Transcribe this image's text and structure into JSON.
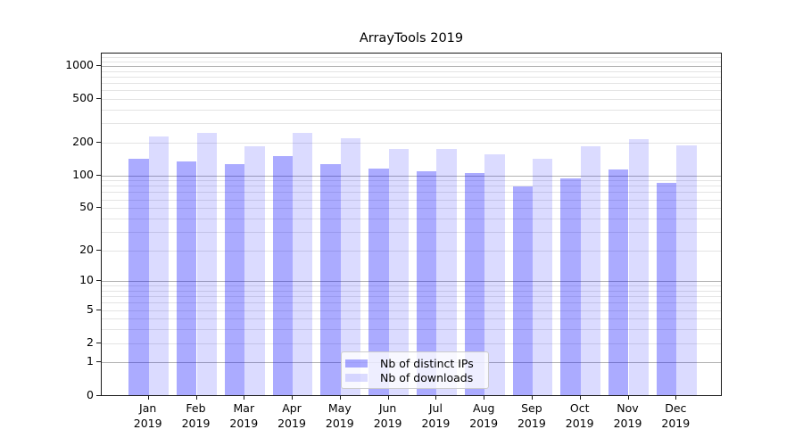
{
  "chart_data": {
    "type": "bar",
    "title": "ArrayTools 2019",
    "scale": "log1p",
    "grid": "both",
    "legend_position": "lower center",
    "ylim": [
      0,
      1300
    ],
    "y_ticks": [
      0,
      1,
      2,
      5,
      10,
      20,
      50,
      100,
      200,
      500,
      1000
    ],
    "categories": [
      {
        "month": "Jan",
        "year": "2019"
      },
      {
        "month": "Feb",
        "year": "2019"
      },
      {
        "month": "Mar",
        "year": "2019"
      },
      {
        "month": "Apr",
        "year": "2019"
      },
      {
        "month": "May",
        "year": "2019"
      },
      {
        "month": "Jun",
        "year": "2019"
      },
      {
        "month": "Jul",
        "year": "2019"
      },
      {
        "month": "Aug",
        "year": "2019"
      },
      {
        "month": "Sep",
        "year": "2019"
      },
      {
        "month": "Oct",
        "year": "2019"
      },
      {
        "month": "Nov",
        "year": "2019"
      },
      {
        "month": "Dec",
        "year": "2019"
      }
    ],
    "series": [
      {
        "name": "Nb of distinct IPs",
        "color": "#0000ff",
        "alpha": 0.33,
        "values": [
          142,
          135,
          128,
          151,
          127,
          115,
          109,
          105,
          79,
          93,
          114,
          85
        ]
      },
      {
        "name": "Nb of downloads",
        "color": "#0000ff",
        "alpha": 0.14,
        "values": [
          228,
          245,
          186,
          243,
          220,
          174,
          176,
          156,
          143,
          184,
          215,
          190
        ]
      }
    ]
  }
}
